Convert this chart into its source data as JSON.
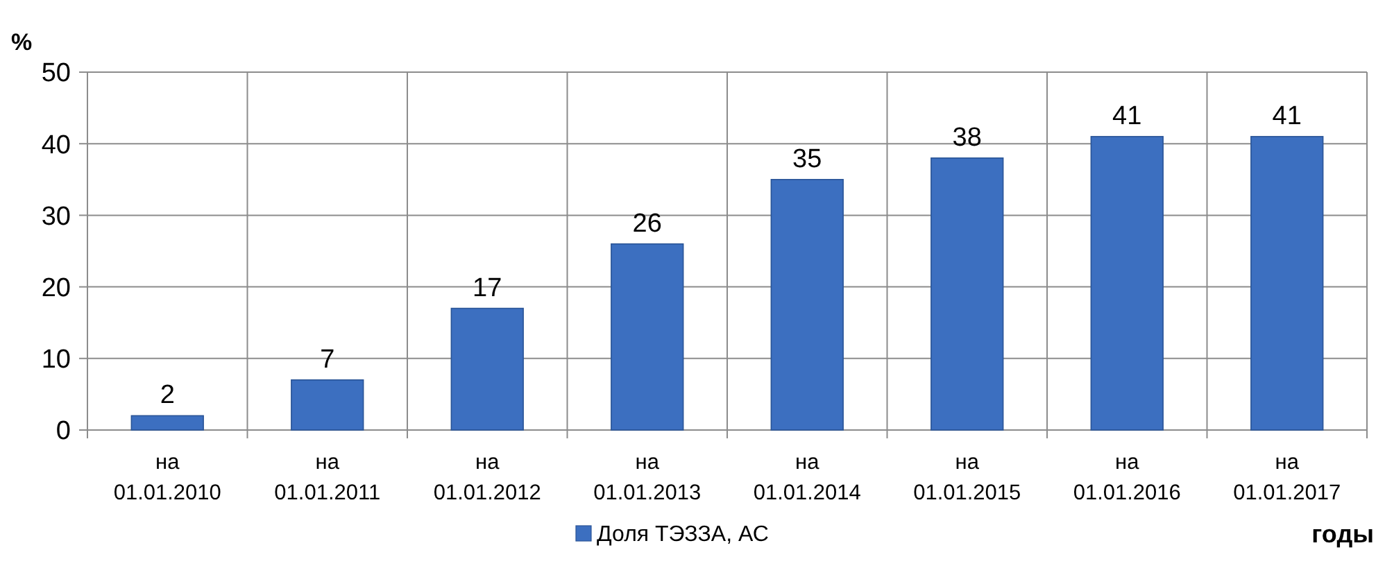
{
  "chart_data": {
    "type": "bar",
    "ylabel": "%",
    "xlabel": "годы",
    "categories": [
      "на 01.01.2010",
      "на 01.01.2011",
      "на 01.01.2012",
      "на 01.01.2013",
      "на 01.01.2014",
      "на 01.01.2015",
      "на 01.01.2016",
      "на 01.01.2017"
    ],
    "series": [
      {
        "name": "Доля ТЭЗЗА, АС",
        "color": "#3c6fc0",
        "values": [
          2,
          7,
          17,
          26,
          35,
          38,
          41,
          41
        ]
      }
    ],
    "ylim": [
      0,
      50
    ],
    "yticks": [
      0,
      10,
      20,
      30,
      40,
      50
    ],
    "grid": true,
    "data_labels": true,
    "legend": "bottom"
  }
}
